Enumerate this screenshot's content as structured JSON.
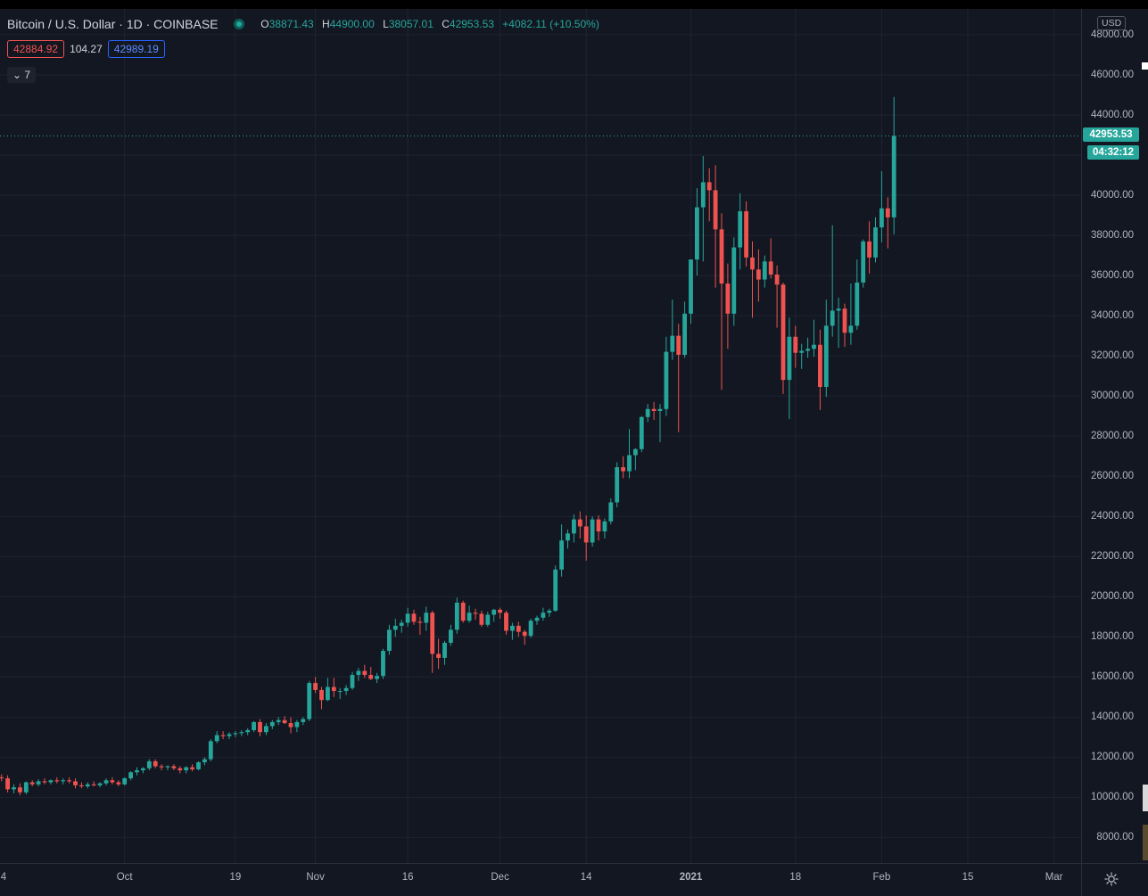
{
  "header": {
    "symbol_title": "Bitcoin / U.S. Dollar · 1D · COINBASE",
    "ohlc": {
      "o_label": "O",
      "o_value": "38871.43",
      "h_label": "H",
      "h_value": "44900.00",
      "l_label": "L",
      "l_value": "38057.01",
      "c_label": "C",
      "c_value": "42953.53",
      "change": "+4082.11 (+10.50%)"
    },
    "bid": "42884.92",
    "spread": "104.27",
    "ask": "42989.19",
    "collapse_label": "7"
  },
  "price_axis": {
    "currency": "USD",
    "last_price": "42953.53",
    "countdown": "04:32:12"
  },
  "colors": {
    "background": "#131722",
    "up": "#26a69a",
    "down": "#ef5350",
    "grid": "#1f2330"
  },
  "chart_data": {
    "type": "candlestick",
    "title": "Bitcoin / U.S. Dollar · 1D · COINBASE",
    "ylim": [
      7000,
      47000
    ],
    "y_ticks": [
      8000,
      10000,
      12000,
      14000,
      16000,
      18000,
      20000,
      22000,
      24000,
      26000,
      28000,
      30000,
      32000,
      34000,
      36000,
      38000,
      40000,
      42000,
      44000,
      46000,
      48000
    ],
    "y_tick_labels": [
      "8000.00",
      "10000.00",
      "12000.00",
      "14000.00",
      "16000.00",
      "18000.00",
      "20000.00",
      "22000.00",
      "24000.00",
      "26000.00",
      "28000.00",
      "30000.00",
      "32000.00",
      "34000.00",
      "36000.00",
      "38000.00",
      "40000.00",
      "42000.00",
      "44000.00",
      "46000.00",
      "48000.00"
    ],
    "x_tick_labels": [
      "4",
      "Oct",
      "19",
      "Nov",
      "16",
      "Dec",
      "14",
      "2021",
      "18",
      "Feb",
      "15",
      "Mar"
    ],
    "x_tick_days": [
      -23,
      3,
      21,
      34,
      49,
      64,
      78,
      95,
      112,
      126,
      140,
      154
    ],
    "first_day_index": -23,
    "grid": true,
    "last_price": 42953.53,
    "ohlc_days": [
      [
        10350,
        10750,
        10150,
        10600
      ],
      [
        10600,
        10800,
        10450,
        10700
      ],
      [
        10700,
        10900,
        10550,
        10800
      ],
      [
        10800,
        11000,
        10700,
        10850
      ],
      [
        10850,
        11050,
        10750,
        10950
      ],
      [
        10950,
        11150,
        10850,
        11000
      ],
      [
        11000,
        11150,
        10800,
        10950
      ],
      [
        10950,
        11100,
        10250,
        10400
      ],
      [
        10400,
        10650,
        10200,
        10500
      ],
      [
        10500,
        10700,
        10100,
        10250
      ],
      [
        10250,
        10800,
        10150,
        10750
      ],
      [
        10750,
        10850,
        10550,
        10650
      ],
      [
        10650,
        10900,
        10550,
        10800
      ],
      [
        10800,
        10950,
        10650,
        10750
      ],
      [
        10750,
        10900,
        10650,
        10850
      ],
      [
        10850,
        11000,
        10700,
        10800
      ],
      [
        10800,
        10950,
        10650,
        10850
      ],
      [
        10850,
        11000,
        10700,
        10800
      ],
      [
        10800,
        10950,
        10450,
        10600
      ],
      [
        10600,
        10750,
        10450,
        10550
      ],
      [
        10550,
        10750,
        10450,
        10650
      ],
      [
        10650,
        10800,
        10550,
        10600
      ],
      [
        10600,
        10750,
        10500,
        10700
      ],
      [
        10700,
        10950,
        10600,
        10850
      ],
      [
        10850,
        11000,
        10650,
        10750
      ],
      [
        10750,
        10850,
        10550,
        10650
      ],
      [
        10650,
        11000,
        10600,
        10950
      ],
      [
        10950,
        11300,
        10850,
        11250
      ],
      [
        11250,
        11500,
        11100,
        11350
      ],
      [
        11350,
        11500,
        11200,
        11450
      ],
      [
        11450,
        11900,
        11350,
        11800
      ],
      [
        11800,
        11900,
        11450,
        11550
      ],
      [
        11550,
        11650,
        11350,
        11500
      ],
      [
        11500,
        11600,
        11350,
        11550
      ],
      [
        11550,
        11650,
        11350,
        11450
      ],
      [
        11450,
        11550,
        11200,
        11350
      ],
      [
        11350,
        11550,
        11200,
        11500
      ],
      [
        11500,
        11650,
        11300,
        11400
      ],
      [
        11400,
        11800,
        11350,
        11750
      ],
      [
        11750,
        12000,
        11600,
        11900
      ],
      [
        11900,
        12900,
        11800,
        12800
      ],
      [
        12800,
        13300,
        12700,
        13100
      ],
      [
        13100,
        13300,
        12900,
        13050
      ],
      [
        13050,
        13250,
        12900,
        13150
      ],
      [
        13150,
        13300,
        13000,
        13200
      ],
      [
        13200,
        13350,
        13050,
        13250
      ],
      [
        13250,
        13450,
        13100,
        13350
      ],
      [
        13350,
        13800,
        13250,
        13750
      ],
      [
        13750,
        13900,
        13050,
        13250
      ],
      [
        13250,
        13700,
        13100,
        13550
      ],
      [
        13550,
        13850,
        13400,
        13750
      ],
      [
        13750,
        14000,
        13600,
        13850
      ],
      [
        13850,
        14050,
        13650,
        13700
      ],
      [
        13700,
        14000,
        13200,
        13500
      ],
      [
        13500,
        13850,
        13250,
        13750
      ],
      [
        13750,
        14000,
        13600,
        13900
      ],
      [
        13900,
        15800,
        13800,
        15700
      ],
      [
        15700,
        16000,
        15200,
        15350
      ],
      [
        15350,
        15500,
        14400,
        14850
      ],
      [
        14850,
        15950,
        14800,
        15500
      ],
      [
        15500,
        15950,
        15000,
        15300
      ],
      [
        15300,
        15450,
        14900,
        15300
      ],
      [
        15300,
        15600,
        15100,
        15450
      ],
      [
        15450,
        16250,
        15350,
        16100
      ],
      [
        16100,
        16450,
        15800,
        16300
      ],
      [
        16300,
        16600,
        15950,
        16100
      ],
      [
        16100,
        16500,
        15850,
        15900
      ],
      [
        15900,
        16200,
        15700,
        16050
      ],
      [
        16050,
        17400,
        15900,
        17300
      ],
      [
        17300,
        18600,
        17100,
        18350
      ],
      [
        18350,
        18900,
        18000,
        18550
      ],
      [
        18550,
        18850,
        18200,
        18700
      ],
      [
        18700,
        19450,
        18500,
        19150
      ],
      [
        19150,
        19350,
        18600,
        18750
      ],
      [
        18750,
        19000,
        18100,
        18700
      ],
      [
        18700,
        19500,
        18300,
        19200
      ],
      [
        19200,
        19300,
        16200,
        17150
      ],
      [
        17150,
        17900,
        16400,
        16950
      ],
      [
        16950,
        17800,
        16600,
        17700
      ],
      [
        17700,
        18600,
        17550,
        18350
      ],
      [
        18350,
        19950,
        18150,
        19700
      ],
      [
        19700,
        19800,
        18700,
        18800
      ],
      [
        18800,
        19550,
        18700,
        19200
      ],
      [
        19200,
        19400,
        18850,
        19150
      ],
      [
        19150,
        19300,
        18500,
        18600
      ],
      [
        18600,
        19250,
        18500,
        19100
      ],
      [
        19100,
        19400,
        18750,
        19350
      ],
      [
        19350,
        19450,
        18900,
        19200
      ],
      [
        19200,
        19300,
        18100,
        18300
      ],
      [
        18300,
        18700,
        17850,
        18550
      ],
      [
        18550,
        18750,
        18000,
        18250
      ],
      [
        18250,
        18350,
        17600,
        18050
      ],
      [
        18050,
        18900,
        17950,
        18800
      ],
      [
        18800,
        19050,
        18600,
        18950
      ],
      [
        18950,
        19450,
        18800,
        19200
      ],
      [
        19200,
        19400,
        19000,
        19300
      ],
      [
        19300,
        21550,
        19250,
        21350
      ],
      [
        21350,
        23600,
        21000,
        22800
      ],
      [
        22800,
        23350,
        22400,
        23150
      ],
      [
        23150,
        24100,
        22700,
        23850
      ],
      [
        23850,
        24250,
        22900,
        23500
      ],
      [
        23500,
        24050,
        21800,
        22700
      ],
      [
        22700,
        24000,
        22500,
        23850
      ],
      [
        23850,
        24050,
        22800,
        23250
      ],
      [
        23250,
        23900,
        22900,
        23750
      ],
      [
        23750,
        24900,
        23600,
        24700
      ],
      [
        24700,
        26700,
        24450,
        26450
      ],
      [
        26450,
        27000,
        25900,
        26250
      ],
      [
        26250,
        28350,
        25900,
        27050
      ],
      [
        27050,
        27400,
        26300,
        27350
      ],
      [
        27350,
        29000,
        27200,
        28950
      ],
      [
        28950,
        29600,
        28700,
        29350
      ],
      [
        29350,
        29700,
        28800,
        29250
      ],
      [
        29250,
        29600,
        27700,
        29350
      ],
      [
        29350,
        32950,
        29000,
        32200
      ],
      [
        32200,
        34800,
        31800,
        33000
      ],
      [
        33000,
        33600,
        28200,
        32050
      ],
      [
        32050,
        34700,
        31900,
        34100
      ],
      [
        34100,
        36800,
        33600,
        36800
      ],
      [
        36800,
        40350,
        36000,
        39400
      ],
      [
        39400,
        41950,
        36700,
        40650
      ],
      [
        40650,
        41350,
        38700,
        40250
      ],
      [
        40250,
        41500,
        35400,
        38300
      ],
      [
        38300,
        39100,
        30300,
        35600
      ],
      [
        35600,
        36600,
        32350,
        34100
      ],
      [
        34100,
        37900,
        33500,
        37400
      ],
      [
        37400,
        40100,
        36300,
        39200
      ],
      [
        39200,
        39700,
        36450,
        36900
      ],
      [
        36900,
        37700,
        33900,
        36300
      ],
      [
        36300,
        37300,
        34700,
        35800
      ],
      [
        35800,
        37000,
        35400,
        36700
      ],
      [
        36700,
        37850,
        35850,
        36050
      ],
      [
        36050,
        36500,
        33400,
        35550
      ],
      [
        35550,
        35650,
        30100,
        30800
      ],
      [
        30800,
        33900,
        28850,
        32950
      ],
      [
        32950,
        33500,
        31400,
        32150
      ],
      [
        32150,
        32600,
        31350,
        32250
      ],
      [
        32250,
        32900,
        31900,
        32350
      ],
      [
        32350,
        33800,
        31950,
        32550
      ],
      [
        32550,
        33300,
        29300,
        30450
      ],
      [
        30450,
        34800,
        29950,
        33500
      ],
      [
        33500,
        38500,
        32950,
        34250
      ],
      [
        34250,
        34900,
        32400,
        34350
      ],
      [
        34350,
        34600,
        32450,
        33150
      ],
      [
        33150,
        35600,
        32550,
        33500
      ],
      [
        33500,
        36800,
        33300,
        35650
      ],
      [
        35650,
        37800,
        35400,
        37700
      ],
      [
        37700,
        38700,
        36100,
        36900
      ],
      [
        36900,
        38900,
        36650,
        38400
      ],
      [
        38400,
        41200,
        37650,
        39350
      ],
      [
        39350,
        39900,
        37350,
        38900
      ],
      [
        38900,
        44900,
        38057.01,
        42953.53
      ]
    ]
  }
}
